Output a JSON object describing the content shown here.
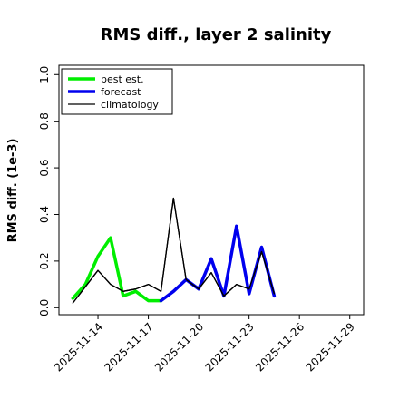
{
  "chart_data": {
    "type": "line",
    "title": "RMS diff., layer 2 salinity",
    "ylabel": "RMS diff. (1e-3)",
    "xlabel": "",
    "ylim": [
      -0.03,
      1.04
    ],
    "yticks": [
      0.0,
      0.2,
      0.4,
      0.6,
      0.8,
      1.0
    ],
    "ytick_labels": [
      "0.0",
      "0.2",
      "0.4",
      "0.6",
      "0.8",
      "1.0"
    ],
    "xlim": [
      -1.55,
      10.55
    ],
    "x_tick_positions": [
      0,
      2,
      4,
      6,
      8,
      10
    ],
    "x_tick_labels": [
      "2025-11-14",
      "2025-11-17",
      "2025-11-20",
      "2025-11-23",
      "2025-11-26",
      "2025-11-29"
    ],
    "highlighted_tick_label": "2025-11-20",
    "highlight_color": "#228B22",
    "x": [
      -1.0,
      -0.5,
      0.0,
      0.5,
      1.0,
      1.5,
      2.0,
      2.5,
      3.0,
      3.5,
      4.0,
      4.5,
      5.0,
      5.5,
      6.0,
      6.5,
      7.0,
      7.5,
      8.0,
      8.5,
      9.0,
      9.5,
      10.0
    ],
    "series": [
      {
        "name": "best est.",
        "color": "#00ee00",
        "width": 3.5,
        "values": [
          0.04,
          0.1,
          0.22,
          0.3,
          0.05,
          0.07,
          0.03,
          0.03,
          null,
          null,
          null,
          null,
          null,
          null,
          null,
          null,
          null,
          null,
          null,
          null,
          null,
          null,
          null
        ]
      },
      {
        "name": "forecast",
        "color": "#0000ee",
        "width": 3.5,
        "values": [
          null,
          null,
          null,
          null,
          null,
          null,
          null,
          0.03,
          0.07,
          0.12,
          0.08,
          0.21,
          0.05,
          0.35,
          0.06,
          0.26,
          0.05,
          null,
          null,
          null,
          null,
          null,
          null
        ]
      },
      {
        "name": "climatology",
        "color": "#000000",
        "width": 1.3,
        "values": [
          0.02,
          0.09,
          0.16,
          0.1,
          0.07,
          0.08,
          0.1,
          0.07,
          0.47,
          0.12,
          0.08,
          0.15,
          0.05,
          0.1,
          0.08,
          0.24,
          0.06,
          null,
          null,
          null,
          null,
          null,
          null
        ]
      }
    ],
    "overlay_series": [
      {
        "of": "best est.",
        "color": "#00ee00",
        "width": 3.5,
        "values": [
          null,
          null,
          null,
          null,
          null,
          null,
          null,
          0.03,
          0.06,
          0.13,
          0.09,
          0.18,
          0.05,
          0.31,
          0.07,
          0.22,
          0.06,
          null,
          null,
          null,
          null,
          null,
          null
        ]
      }
    ],
    "legend": {
      "placement": "top-left",
      "entries": [
        "best est.",
        "forecast",
        "climatology"
      ]
    },
    "grid": false
  }
}
